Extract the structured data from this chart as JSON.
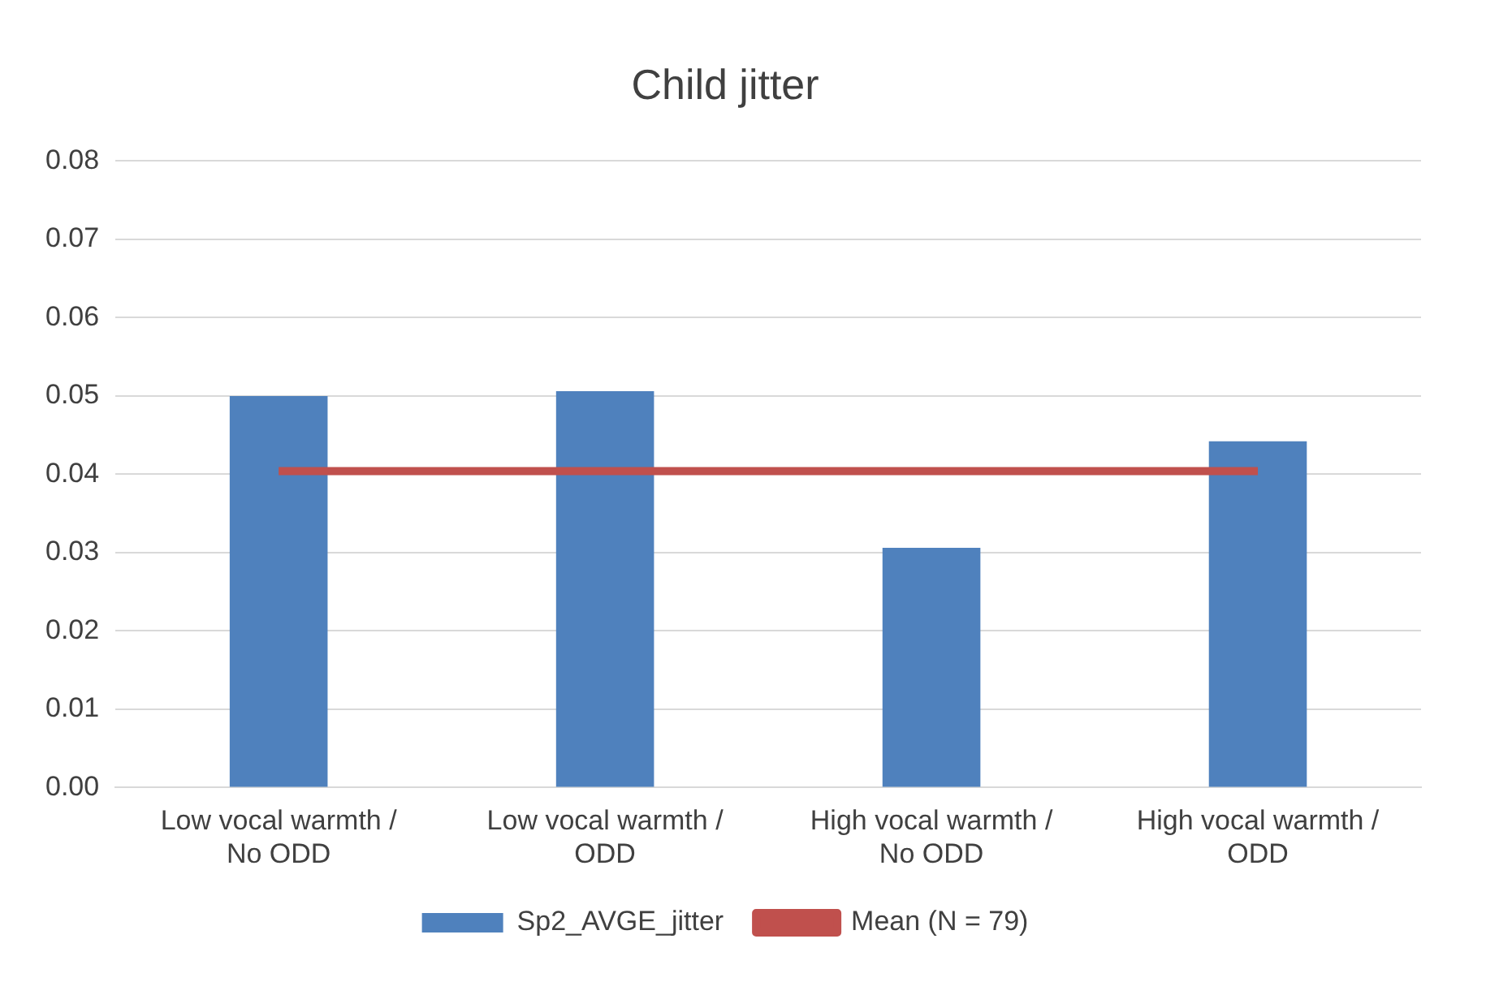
{
  "chart_data": {
    "type": "bar",
    "title": "Child jitter",
    "categories": [
      "Low vocal warmth / No ODD",
      "Low vocal warmth / ODD",
      "High vocal warmth / No ODD",
      "High vocal warmth / ODD"
    ],
    "series": [
      {
        "name": "Sp2_AVGE_jitter",
        "color": "#4f81bd",
        "values": [
          0.05,
          0.0506,
          0.0306,
          0.0442
        ]
      },
      {
        "name": "Mean (N = 79)",
        "type": "line",
        "color": "#c0504d",
        "values": [
          0.0404,
          0.0404,
          0.0404,
          0.0404
        ]
      }
    ],
    "ylim": [
      0,
      0.08
    ],
    "yticks": [
      {
        "value": 0,
        "label": "0.00"
      },
      {
        "value": 0.01,
        "label": "0.01"
      },
      {
        "value": 0.02,
        "label": "0.02"
      },
      {
        "value": 0.03,
        "label": "0.03"
      },
      {
        "value": 0.04,
        "label": "0.04"
      },
      {
        "value": 0.05,
        "label": "0.05"
      },
      {
        "value": 0.06,
        "label": "0.06"
      },
      {
        "value": 0.07,
        "label": "0.07"
      },
      {
        "value": 0.08,
        "label": "0.08"
      }
    ],
    "grid": "y",
    "legend": "bottom",
    "marker": "none"
  }
}
